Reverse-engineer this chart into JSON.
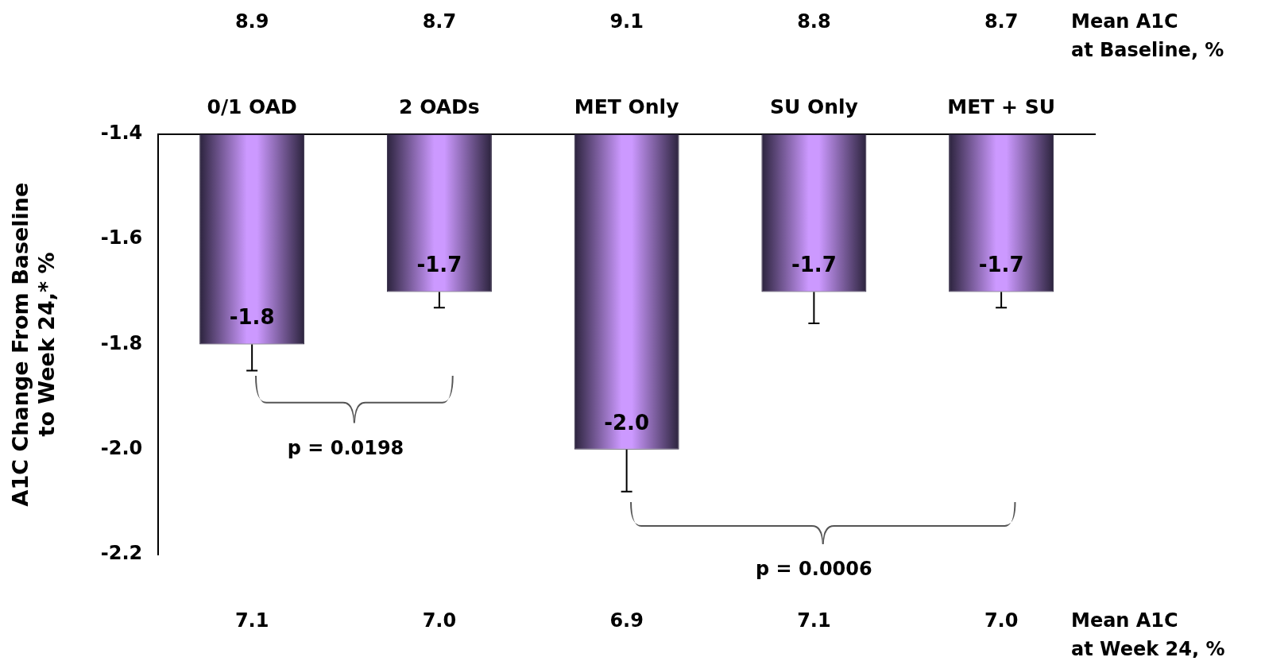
{
  "chart_data": {
    "type": "bar",
    "ylabel": "A1C Change From Baseline\nto Week 24,* %",
    "categories": [
      "0/1 OAD",
      "2 OADs",
      "MET Only",
      "SU Only",
      "MET + SU"
    ],
    "values": [
      -1.8,
      -1.7,
      -2.0,
      -1.7,
      -1.7
    ],
    "value_labels": [
      "-1.8",
      "-1.7",
      "-2.0",
      "-1.7",
      "-1.7"
    ],
    "errors": [
      [
        -1.85,
        -1.8
      ],
      [
        -1.73,
        -1.7
      ],
      [
        -2.08,
        -2.0
      ],
      [
        -1.76,
        -1.7
      ],
      [
        -1.73,
        -1.7
      ]
    ],
    "color": "#cc99ff",
    "ylim": [
      -2.2,
      -1.4
    ],
    "yticks": [
      -1.4,
      -1.6,
      -1.8,
      {
        "value": -2.0,
        "label": "-2.0"
      },
      -2.2
    ],
    "grid": false,
    "legend": false,
    "annotations": [
      "8.9",
      "8.7",
      "9.1",
      "8.8",
      "8.7",
      "Mean A1C\nat Baseline, %",
      "7.1",
      "7.0",
      "6.9",
      "7.1",
      "7.0",
      "Mean A1C\nat Week 24, %",
      "p = 0.0198",
      "p = 0.0006"
    ]
  }
}
